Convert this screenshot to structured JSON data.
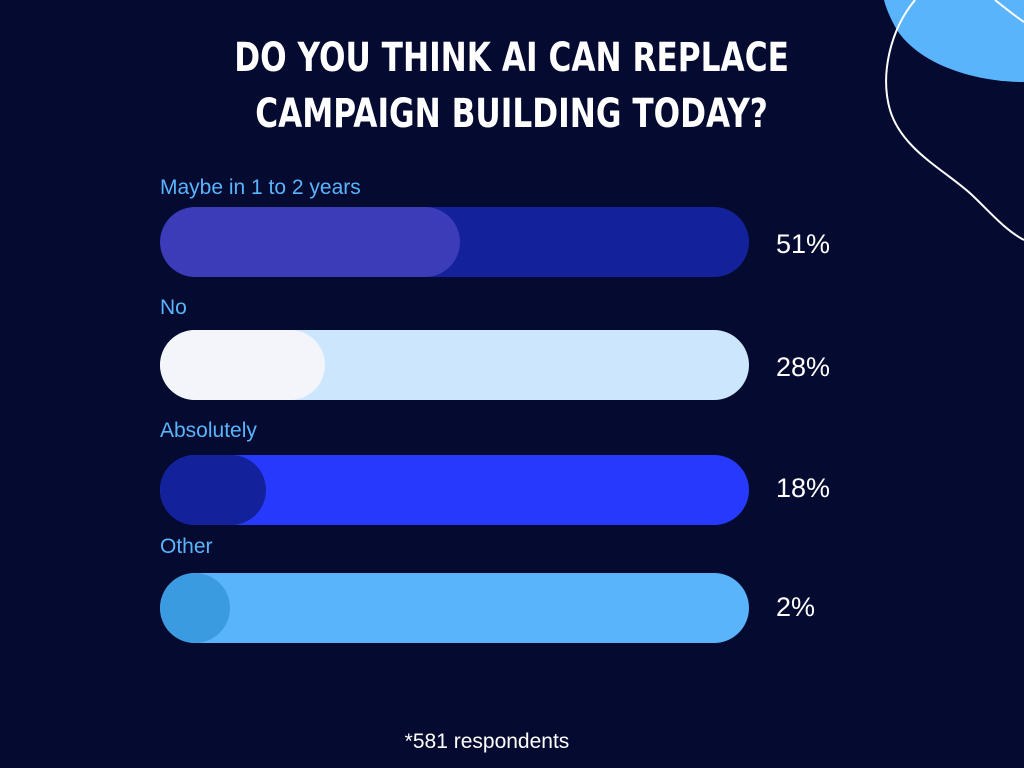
{
  "colors": {
    "background": "#050a30",
    "label": "#5ab4fb",
    "text": "#ffffff",
    "decoration": "#5ab4fb"
  },
  "chart_data": {
    "type": "bar",
    "orientation": "horizontal",
    "title": "DO YOU THINK AI CAN REPLACE CAMPAIGN BUILDING TODAY?",
    "title_lines": [
      "DO YOU THINK AI CAN REPLACE",
      "CAMPAIGN BUILDING TODAY?"
    ],
    "xlim": [
      0,
      100
    ],
    "unit": "%",
    "grid": false,
    "categories": [
      "Maybe in 1 to 2 years",
      "No",
      "Absolutely",
      "Other"
    ],
    "values": [
      51,
      28,
      18,
      2
    ],
    "value_labels": [
      "51%",
      "28%",
      "18%",
      "2%"
    ],
    "track_colors": [
      "#13229a",
      "#cce7fd",
      "#2639fc",
      "#5ab4fb"
    ],
    "fill_colors": [
      "#3c3bb8",
      "#f3f5fa",
      "#13229a",
      "#3a9be0"
    ]
  },
  "footnote": "*581 respondents"
}
